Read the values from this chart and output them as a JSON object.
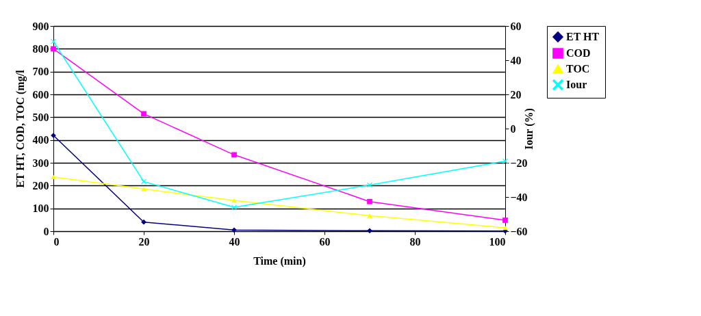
{
  "chart_data": {
    "type": "line",
    "xlabel": "Time (min)",
    "ylabel": "ET HT, COD, TOC (mg/l",
    "y2label": "Iour (%)",
    "x": [
      0,
      20,
      40,
      70,
      100
    ],
    "series": [
      {
        "name": "ET HT",
        "color": "#000080",
        "marker": "diamond",
        "values": [
          420,
          40,
          5,
          2,
          1
        ]
      },
      {
        "name": "COD",
        "color": "#ff00ff",
        "marker": "square",
        "values": [
          800,
          515,
          335,
          130,
          48
        ]
      },
      {
        "name": "TOC",
        "color": "#ffff00",
        "marker": "triangle",
        "values": [
          238,
          185,
          135,
          68,
          15
        ]
      },
      {
        "name": "Iour",
        "color": "#00ffff",
        "marker": "cross",
        "axis": "y2",
        "values": [
          51,
          -31,
          -46,
          -33,
          -19
        ]
      }
    ],
    "xlim": [
      0,
      100
    ],
    "xticks": [
      0,
      20,
      40,
      60,
      80,
      100
    ],
    "ylim": [
      0,
      900
    ],
    "yticks": [
      0,
      100,
      200,
      300,
      400,
      500,
      600,
      700,
      800,
      900
    ],
    "y2lim": [
      -60,
      60
    ],
    "y2ticks": [
      -60,
      -40,
      -20,
      0,
      20,
      40,
      60
    ],
    "grid": "y",
    "legend": "right",
    "line_style": "solid"
  }
}
